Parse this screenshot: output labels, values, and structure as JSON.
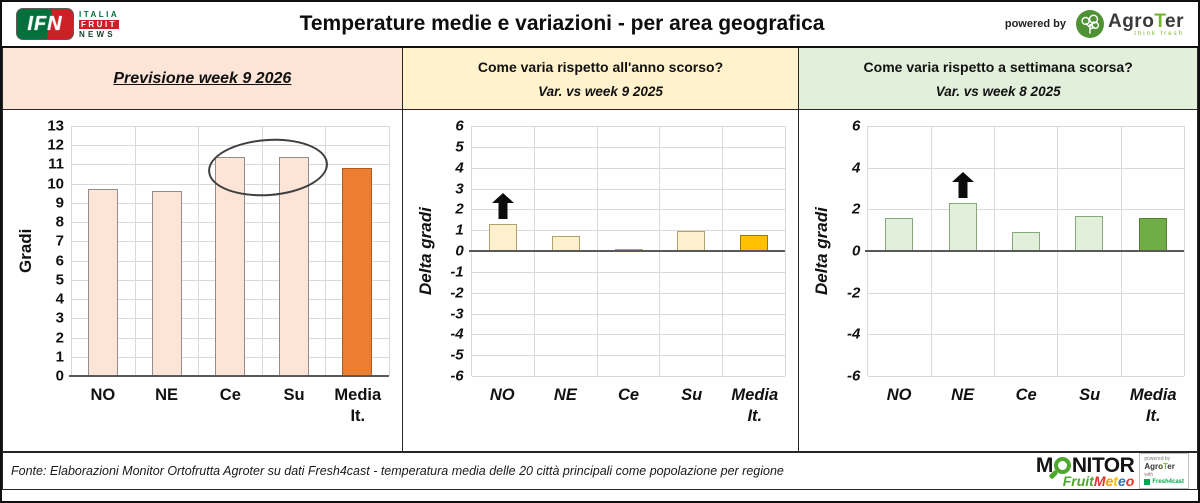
{
  "header": {
    "title": "Temperature medie e variazioni - per area geografica",
    "ifn_logo": {
      "acronym": "IFN",
      "line1": "ITALIA",
      "line2": "FRUIT",
      "line3": "NEWS"
    },
    "powered_by_label": "powered by",
    "agroter_logo": {
      "pre": "Agro",
      "t": "T",
      "post": "er",
      "tagline": "think fresh"
    }
  },
  "bands": [
    {
      "title": "Previsione week 9 2026",
      "subtitle": ""
    },
    {
      "title": "Come varia rispetto all'anno scorso?",
      "subtitle": "Var. vs week 9 2025"
    },
    {
      "title": "Come varia rispetto a settimana scorsa?",
      "subtitle": "Var. vs week 8 2025"
    }
  ],
  "chart_data": [
    {
      "type": "bar",
      "title": "Previsione week 9 2026",
      "ylabel": "Gradi",
      "categories": [
        "NO",
        "NE",
        "Ce",
        "Su",
        "Media\nIt."
      ],
      "values": [
        9.7,
        9.6,
        11.4,
        11.4,
        10.8
      ],
      "ylim": [
        0,
        13
      ],
      "yticks": [
        13,
        12,
        11,
        10,
        9,
        8,
        7,
        6,
        5,
        4,
        3,
        2,
        1,
        0
      ],
      "grid": true,
      "legend": "none",
      "bar_color": "#fce4d6",
      "bar_border": "#8e8e8e",
      "highlight_index": 4,
      "highlight_color": "#ed7d31",
      "highlight_border": "#ae5a21",
      "annotation": {
        "type": "ellipse",
        "categories": [
          2,
          3
        ],
        "y_range": [
          9.4,
          12.35
        ]
      }
    },
    {
      "type": "bar",
      "title": "Var. vs week 9 2025",
      "ylabel": "Delta gradi",
      "categories": [
        "NO",
        "NE",
        "Ce",
        "Su",
        "Media\nIt."
      ],
      "values": [
        1.3,
        0.7,
        0.1,
        0.95,
        0.75
      ],
      "ylim": [
        -6,
        6
      ],
      "yticks": [
        6,
        5,
        4,
        3,
        2,
        1,
        0,
        -1,
        -2,
        -3,
        -4,
        -5,
        -6
      ],
      "grid": true,
      "legend": "none",
      "bar_color": "#fdf0cd",
      "bar_border": "#b3a06a",
      "highlight_index": 4,
      "highlight_color": "#ffc000",
      "highlight_border": "#9c7a00",
      "annotation": {
        "type": "arrow-up",
        "category": 0
      }
    },
    {
      "type": "bar",
      "title": "Var. vs week 8 2025",
      "ylabel": "Delta gradi",
      "categories": [
        "NO",
        "NE",
        "Ce",
        "Su",
        "Media\nIt."
      ],
      "values": [
        1.6,
        2.3,
        0.9,
        1.7,
        1.6
      ],
      "ylim": [
        -6,
        6
      ],
      "yticks": [
        6,
        4,
        2,
        0,
        -2,
        -4,
        -6
      ],
      "grid": true,
      "legend": "none",
      "bar_color": "#e2efda",
      "bar_border": "#86a97c",
      "highlight_index": 4,
      "highlight_color": "#70ad47",
      "highlight_border": "#54802f",
      "annotation": {
        "type": "arrow-up",
        "category": 1
      }
    }
  ],
  "footer": {
    "source_text": "Fonte: Elaborazioni Monitor Ortofrutta Agroter su dati Fresh4cast - temperatura media delle 20 città principali come popolazione per regione",
    "monitor_logo": {
      "word_pre_o": "M",
      "word_post_o": "NITOR",
      "fruit": "Fruit",
      "meteo_letters": [
        {
          "ch": "M",
          "color": "#e63329"
        },
        {
          "ch": "e",
          "color": "#f59b00"
        },
        {
          "ch": "t",
          "color": "#ffc000"
        },
        {
          "ch": "e",
          "color": "#2e75b6"
        },
        {
          "ch": "o",
          "color": "#e63329"
        }
      ],
      "powered_by": "powered by",
      "agroter_pre": "Agro",
      "agroter_t": "T",
      "agroter_post": "er",
      "with_label": "with",
      "fresh4cast": "Fresh4cast"
    }
  },
  "colors": {
    "band_peach": "#fce4d6",
    "band_yellow": "#fff2cc",
    "band_green": "#e2efda",
    "accent_orange": "#ed7d31",
    "accent_gold": "#ffc000",
    "accent_green": "#70ad47",
    "ifn_green": "#00703c",
    "ifn_red": "#cc2027",
    "agroter_green": "#76b82a",
    "gridline": "#d9d9d9",
    "axis": "#595959"
  }
}
